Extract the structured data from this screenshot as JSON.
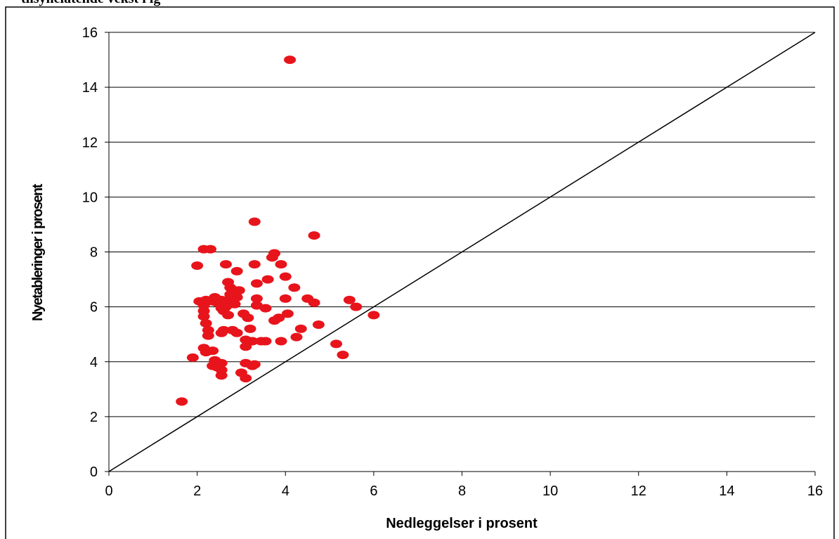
{
  "header": {
    "caption": "tilsynelatende vekst i ig"
  },
  "colors": {
    "point": "#e8141c",
    "grid": "#000000",
    "reference_line": "#000000"
  },
  "chart_data": {
    "type": "scatter",
    "title": "",
    "xlabel": "Nedleggelser i prosent",
    "ylabel": "Nyetableringer i prosent",
    "xlim": [
      0,
      16
    ],
    "ylim": [
      0,
      16
    ],
    "xticks": [
      0,
      2,
      4,
      6,
      8,
      10,
      12,
      14,
      16
    ],
    "yticks": [
      0,
      2,
      4,
      6,
      8,
      10,
      12,
      14,
      16
    ],
    "x_tick_labels": [
      "0",
      "2",
      "4",
      "6",
      "8",
      "10",
      "12",
      "14",
      "16"
    ],
    "y_tick_labels": [
      "0",
      "2",
      "4",
      "6",
      "8",
      "10",
      "12",
      "14",
      "16"
    ],
    "grid": "horizontal",
    "reference_line": {
      "from": [
        0,
        0
      ],
      "to": [
        16,
        16
      ]
    },
    "series": [
      {
        "points": [
          [
            4.1,
            15.0
          ],
          [
            3.3,
            9.1
          ],
          [
            4.65,
            8.6
          ],
          [
            2.15,
            8.1
          ],
          [
            2.3,
            8.1
          ],
          [
            3.75,
            7.95
          ],
          [
            3.7,
            7.8
          ],
          [
            2.0,
            7.5
          ],
          [
            2.65,
            7.55
          ],
          [
            3.3,
            7.55
          ],
          [
            3.9,
            7.55
          ],
          [
            2.9,
            7.3
          ],
          [
            4.0,
            7.1
          ],
          [
            3.6,
            7.0
          ],
          [
            2.7,
            6.9
          ],
          [
            3.35,
            6.85
          ],
          [
            2.75,
            6.7
          ],
          [
            4.2,
            6.7
          ],
          [
            2.85,
            6.6
          ],
          [
            2.95,
            6.6
          ],
          [
            2.75,
            6.45
          ],
          [
            2.85,
            6.45
          ],
          [
            2.4,
            6.35
          ],
          [
            2.9,
            6.35
          ],
          [
            3.35,
            6.3
          ],
          [
            4.0,
            6.3
          ],
          [
            4.5,
            6.3
          ],
          [
            2.2,
            6.25
          ],
          [
            2.35,
            6.2
          ],
          [
            2.55,
            6.25
          ],
          [
            2.7,
            6.25
          ],
          [
            5.45,
            6.25
          ],
          [
            2.05,
            6.2
          ],
          [
            2.45,
            6.15
          ],
          [
            2.85,
            6.1
          ],
          [
            3.35,
            6.05
          ],
          [
            4.65,
            6.15
          ],
          [
            2.15,
            6.05
          ],
          [
            2.55,
            5.95
          ],
          [
            2.65,
            6.0
          ],
          [
            3.55,
            5.95
          ],
          [
            5.6,
            6.0
          ],
          [
            2.15,
            5.85
          ],
          [
            2.6,
            5.85
          ],
          [
            3.05,
            5.75
          ],
          [
            4.05,
            5.75
          ],
          [
            6.0,
            5.7
          ],
          [
            2.15,
            5.65
          ],
          [
            2.7,
            5.7
          ],
          [
            3.15,
            5.6
          ],
          [
            3.85,
            5.6
          ],
          [
            3.75,
            5.5
          ],
          [
            2.2,
            5.4
          ],
          [
            4.75,
            5.35
          ],
          [
            3.2,
            5.2
          ],
          [
            4.35,
            5.2
          ],
          [
            2.25,
            5.15
          ],
          [
            2.6,
            5.15
          ],
          [
            2.8,
            5.15
          ],
          [
            2.55,
            5.05
          ],
          [
            2.9,
            5.05
          ],
          [
            2.25,
            4.95
          ],
          [
            4.25,
            4.9
          ],
          [
            3.1,
            4.8
          ],
          [
            3.25,
            4.75
          ],
          [
            3.45,
            4.75
          ],
          [
            3.55,
            4.75
          ],
          [
            3.9,
            4.75
          ],
          [
            5.15,
            4.65
          ],
          [
            3.1,
            4.55
          ],
          [
            2.15,
            4.5
          ],
          [
            2.35,
            4.4
          ],
          [
            2.2,
            4.35
          ],
          [
            5.3,
            4.25
          ],
          [
            1.9,
            4.15
          ],
          [
            2.4,
            4.05
          ],
          [
            2.55,
            3.95
          ],
          [
            3.1,
            3.95
          ],
          [
            2.35,
            3.85
          ],
          [
            3.25,
            3.85
          ],
          [
            3.3,
            3.9
          ],
          [
            2.45,
            3.8
          ],
          [
            2.55,
            3.7
          ],
          [
            3.0,
            3.6
          ],
          [
            2.55,
            3.5
          ],
          [
            3.1,
            3.4
          ],
          [
            1.65,
            2.55
          ]
        ]
      }
    ]
  }
}
